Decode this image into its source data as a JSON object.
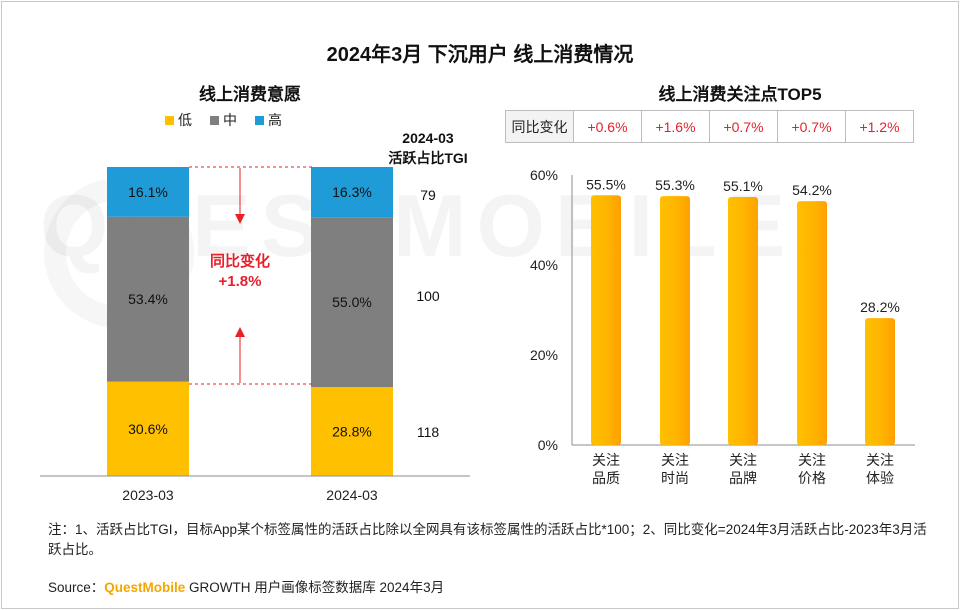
{
  "title": "2024年3月 下沉用户 线上消费情况",
  "watermark": "QUESTMOBILE",
  "left_chart": {
    "subtitle": "线上消费意愿",
    "legend": [
      {
        "label": "低",
        "color": "#ffc000"
      },
      {
        "label": "中",
        "color": "#7f7f7f"
      },
      {
        "label": "高",
        "color": "#1f9bd7"
      }
    ],
    "tgi_header_line1": "2024-03",
    "tgi_header_line2": "活跃占比TGI",
    "change_label": "同比变化",
    "change_value": "+1.8%"
  },
  "right_chart": {
    "subtitle": "线上消费关注点TOP5",
    "yoy_header": "同比变化",
    "yoy_values": [
      "+0.6%",
      "+1.6%",
      "+0.7%",
      "+0.7%",
      "+1.2%"
    ],
    "categories": [
      {
        "line1": "关注",
        "line2": "品质"
      },
      {
        "line1": "关注",
        "line2": "时尚"
      },
      {
        "line1": "关注",
        "line2": "品牌"
      },
      {
        "line1": "关注",
        "line2": "价格"
      },
      {
        "line1": "关注",
        "line2": "体验"
      }
    ]
  },
  "chart_data": [
    {
      "type": "bar",
      "stacked": true,
      "title": "线上消费意愿",
      "categories": [
        "2023-03",
        "2024-03"
      ],
      "series": [
        {
          "name": "低",
          "values": [
            30.6,
            28.8
          ],
          "labels": [
            "30.6%",
            "28.8%"
          ],
          "color": "#ffc000"
        },
        {
          "name": "中",
          "values": [
            53.4,
            55.0
          ],
          "labels": [
            "53.4%",
            "55.0%"
          ],
          "color": "#7f7f7f"
        },
        {
          "name": "高",
          "values": [
            16.1,
            16.3
          ],
          "labels": [
            "16.1%",
            "16.3%"
          ],
          "color": "#1f9bd7"
        }
      ],
      "tgi_2024_03": [
        118,
        100,
        79
      ],
      "tgi_labels": [
        "118",
        "100",
        "79"
      ],
      "ylim": [
        0,
        100
      ]
    },
    {
      "type": "bar",
      "title": "线上消费关注点TOP5",
      "categories": [
        "关注品质",
        "关注时尚",
        "关注品牌",
        "关注价格",
        "关注体验"
      ],
      "values": [
        55.5,
        55.3,
        55.1,
        54.2,
        28.2
      ],
      "value_labels": [
        "55.5%",
        "55.3%",
        "55.1%",
        "54.2%",
        "28.2%"
      ],
      "yticks": [
        0,
        20,
        40,
        60
      ],
      "ytick_labels": [
        "0%",
        "20%",
        "40%",
        "60%"
      ],
      "ylim": [
        0,
        60
      ],
      "color": "#ffc000"
    }
  ],
  "footer": {
    "note": "注：1、活跃占比TGI，目标App某个标签属性的活跃占比除以全网具有该标签属性的活跃占比*100；2、同比变化=2024年3月活跃占比-2023年3月活跃占比。",
    "source_prefix": "Source：",
    "source_brand": "QuestMobile",
    "source_suffix": " GROWTH 用户画像标签数据库 2024年3月"
  }
}
